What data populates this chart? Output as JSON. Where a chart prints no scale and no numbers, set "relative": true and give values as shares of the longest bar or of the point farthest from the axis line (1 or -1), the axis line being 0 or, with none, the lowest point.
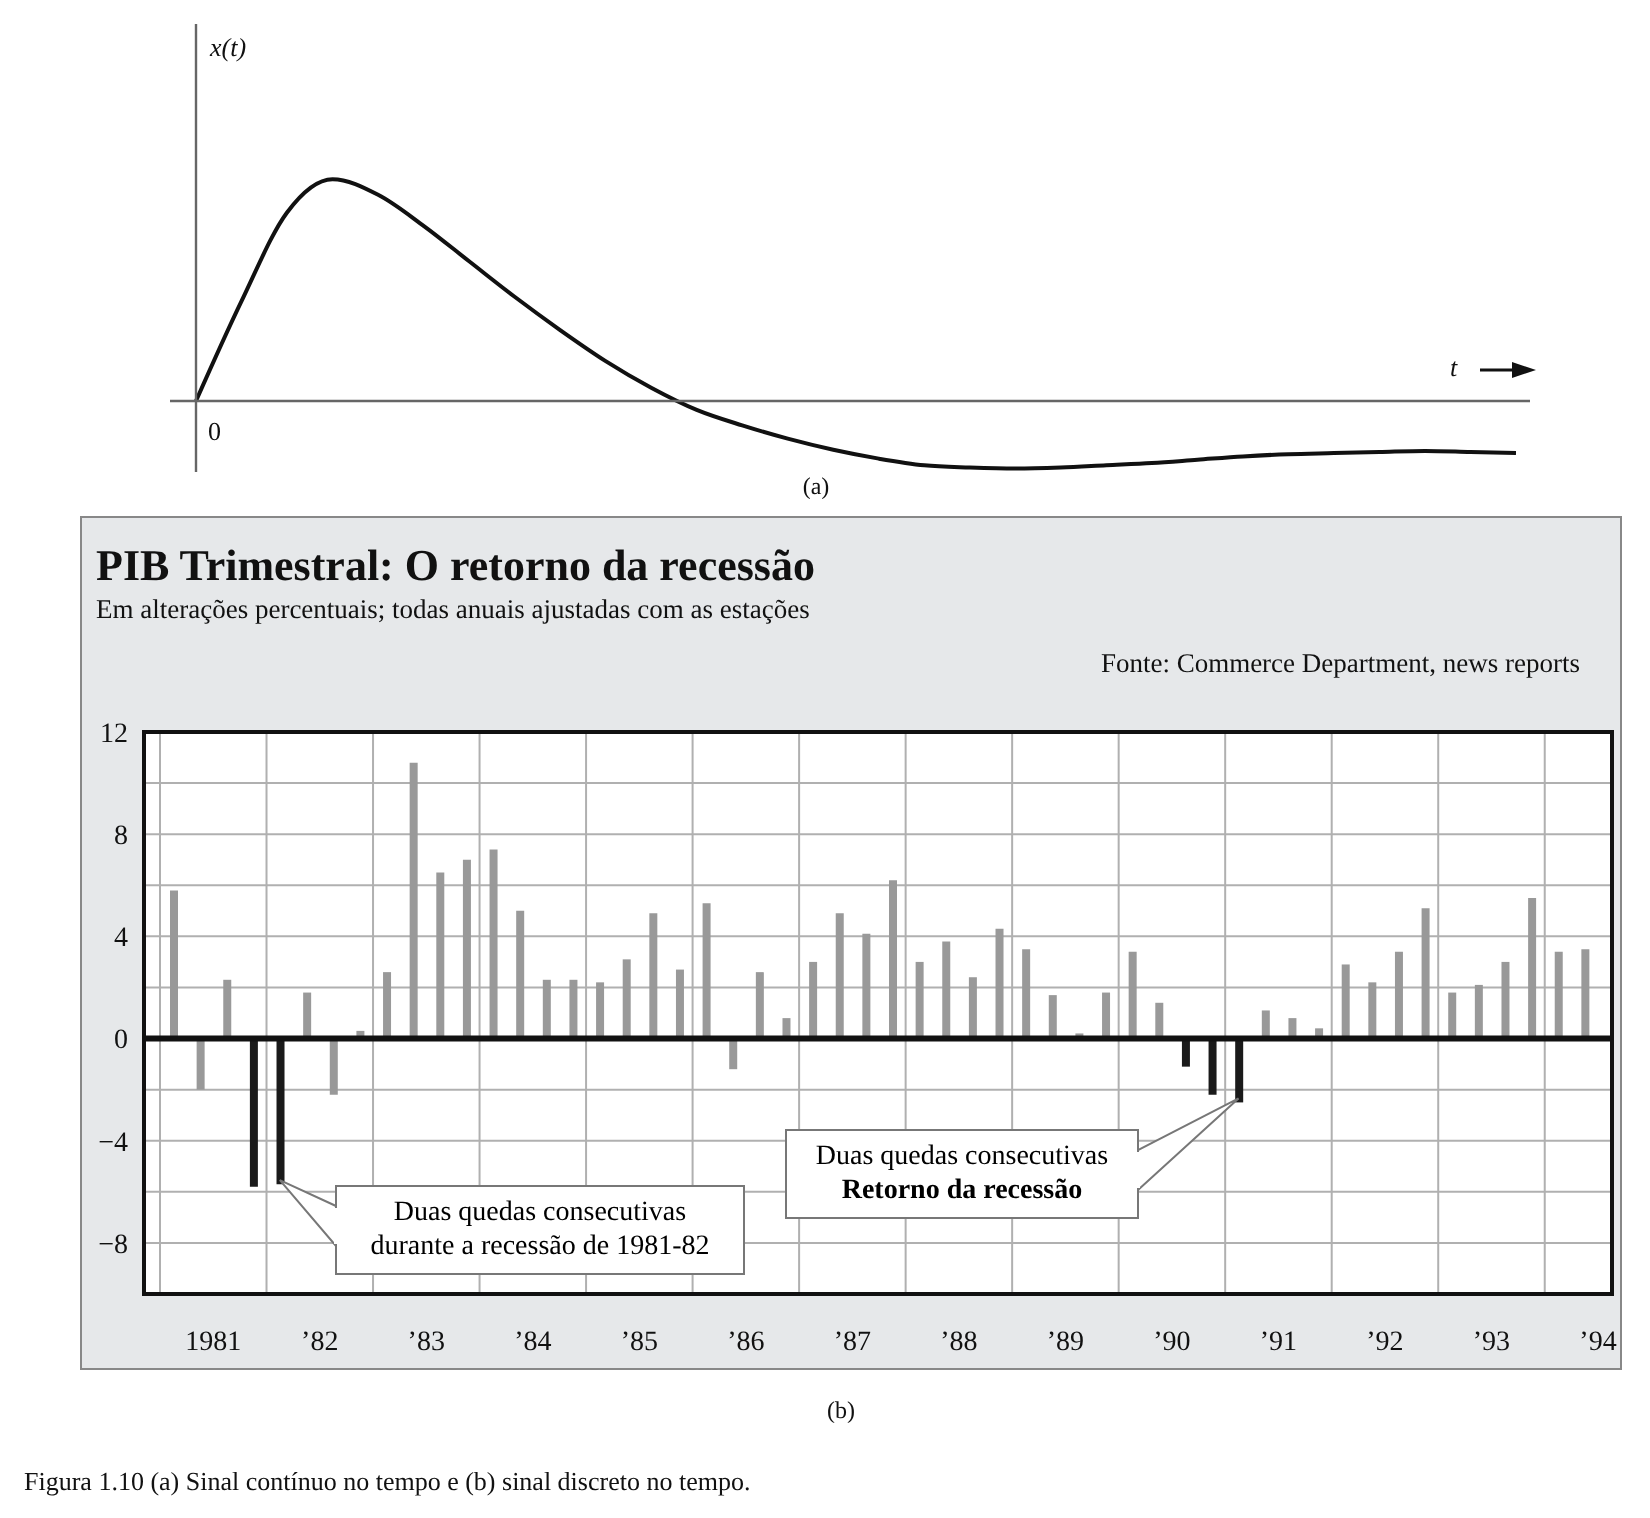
{
  "chart_data": [
    {
      "type": "line",
      "relative": true,
      "ylabel": "x(t)",
      "xlabel": "t",
      "color": "#111111",
      "categories": [
        null,
        null,
        null,
        null,
        null,
        null,
        null,
        null,
        null,
        null,
        null,
        null,
        null,
        null,
        null,
        null,
        null,
        null,
        null,
        null,
        null,
        null,
        null,
        null,
        null,
        null,
        null,
        null,
        null,
        null
      ],
      "values": [
        0,
        0.45,
        0.85,
        1,
        0.93,
        0.79,
        0.63,
        0.47,
        0.32,
        0.18,
        0.06,
        -0.04,
        -0.11,
        -0.17,
        -0.22,
        -0.26,
        -0.29,
        -0.3,
        -0.305,
        -0.3,
        -0.29,
        -0.28,
        -0.265,
        -0.25,
        -0.24,
        -0.235,
        -0.23,
        -0.225,
        -0.23,
        -0.235
      ],
      "annotations": [
        "0",
        "(a)"
      ]
    },
    {
      "type": "bar",
      "title": "PIB Trimestral: O retorno da recessão",
      "subtitle": "Em alterações percentuais; todas anuais ajustadas com as estações",
      "categories": [
        null,
        "1981",
        null,
        null,
        null,
        "’82",
        null,
        null,
        null,
        "’83",
        null,
        null,
        null,
        "’84",
        null,
        null,
        null,
        "’85",
        null,
        null,
        null,
        "’86",
        null,
        null,
        null,
        "’87",
        null,
        null,
        null,
        "’88",
        null,
        null,
        null,
        "’89",
        null,
        null,
        null,
        "’90",
        null,
        null,
        null,
        "’91",
        null,
        null,
        null,
        "’92",
        null,
        null,
        null,
        "’93",
        null,
        null,
        null,
        "’94"
      ],
      "values": [
        5.8,
        -2.0,
        2.3,
        -5.8,
        -5.7,
        1.8,
        -2.2,
        0.3,
        2.6,
        10.8,
        6.5,
        7.0,
        7.4,
        5.0,
        2.3,
        2.3,
        2.2,
        3.1,
        4.9,
        2.7,
        5.3,
        -1.2,
        2.6,
        0.8,
        3.0,
        4.9,
        4.1,
        6.2,
        3.0,
        3.8,
        2.4,
        4.3,
        3.5,
        1.7,
        0.2,
        1.8,
        3.4,
        1.4,
        -1.1,
        -2.2,
        -2.5,
        1.1,
        0.8,
        0.4,
        2.9,
        2.2,
        3.4,
        5.1,
        1.8,
        2.1,
        3.0,
        5.5,
        3.4,
        3.5
      ],
      "colors": [
        "#999999",
        "#999999",
        "#999999",
        "#1a1a1a",
        "#1a1a1a",
        "#999999",
        "#999999",
        "#999999",
        "#999999",
        "#999999",
        "#999999",
        "#999999",
        "#999999",
        "#999999",
        "#999999",
        "#999999",
        "#999999",
        "#999999",
        "#999999",
        "#999999",
        "#999999",
        "#999999",
        "#999999",
        "#999999",
        "#999999",
        "#999999",
        "#999999",
        "#999999",
        "#999999",
        "#999999",
        "#999999",
        "#999999",
        "#999999",
        "#999999",
        "#999999",
        "#999999",
        "#999999",
        "#999999",
        "#1a1a1a",
        "#1a1a1a",
        "#1a1a1a",
        "#999999",
        "#999999",
        "#999999",
        "#999999",
        "#999999",
        "#999999",
        "#999999",
        "#999999",
        "#999999",
        "#999999",
        "#999999",
        "#999999",
        "#999999"
      ],
      "ylim": [
        -10,
        12
      ],
      "yticks": [
        {
          "value": -10,
          "label": null
        },
        -8,
        {
          "value": -6,
          "label": null
        },
        -4,
        {
          "value": -2,
          "label": null
        },
        0,
        {
          "value": 2,
          "label": null
        },
        4,
        {
          "value": 6,
          "label": null
        },
        8,
        {
          "value": 10,
          "label": null
        },
        12
      ],
      "grid": true,
      "ref_lines": [
        {
          "axis": "y",
          "value": 0,
          "color": "#111111"
        }
      ],
      "annotations": [
        "Fonte: Commerce Department, news reports",
        "Duas quedas consecutivas\ndurante a recessão de 1981-82",
        "Duas quedas consecutivas\nRetorno da recessão",
        "(b)",
        "Figura 1.10 (a) Sinal contínuo no tempo e (b) sinal discreto no tempo."
      ]
    }
  ]
}
